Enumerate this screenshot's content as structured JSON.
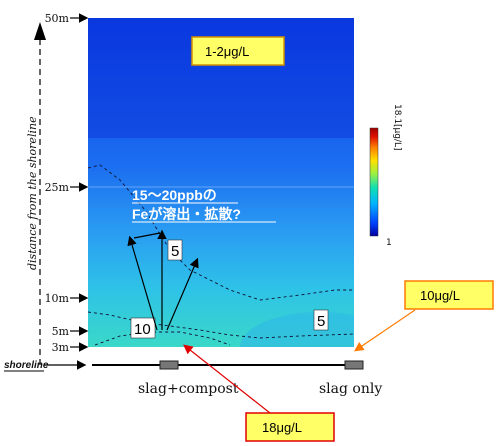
{
  "chart_data": {
    "type": "heatmap",
    "y_axis": {
      "label": "distance from the shoreline",
      "ticks": [
        {
          "value": 50,
          "label": "50m"
        },
        {
          "value": 25,
          "label": "25m"
        },
        {
          "value": 10,
          "label": "10m"
        },
        {
          "value": 5,
          "label": "5m"
        },
        {
          "value": 3,
          "label": "3m"
        }
      ],
      "range": [
        3,
        50
      ]
    },
    "shoreline_label": "shoreline",
    "colorbar": {
      "min_label": "1",
      "max_label": "18.1[μg/L]",
      "min": 1,
      "max": 18.1,
      "colors": [
        "#0000a0",
        "#0040ff",
        "#00b4ff",
        "#10e0b0",
        "#a0f040",
        "#ffe000",
        "#ff8000",
        "#e01000",
        "#a00000"
      ]
    },
    "contour_labels": [
      {
        "text": "5"
      },
      {
        "text": "10"
      },
      {
        "text": "5"
      }
    ],
    "sites": [
      {
        "name": "slag+compost"
      },
      {
        "name": "slag only"
      }
    ],
    "callouts": [
      {
        "text": "1-2μg/L",
        "bg": "#ffff66"
      },
      {
        "text": "10μg/L",
        "bg": "#ffff66"
      },
      {
        "text": "18μg/L",
        "bg": "#ffff66"
      }
    ],
    "annotation": {
      "line1": "15～20ppbの",
      "line2": "Feが溶出・拡散?"
    }
  }
}
